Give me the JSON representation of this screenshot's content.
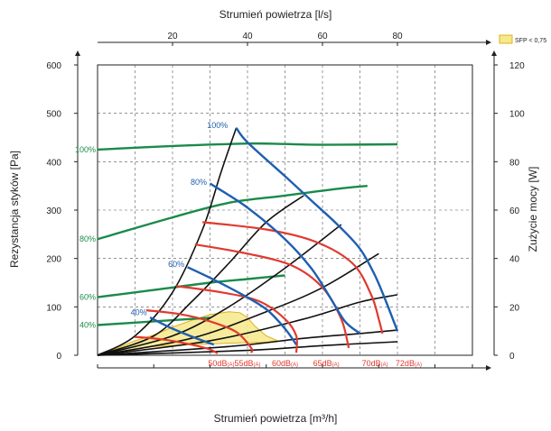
{
  "chart_data": {
    "type": "line",
    "title_top": "Strumień powietrza [l/s]",
    "xlabel": "Strumień powietrza [m³/h]",
    "ylabel_left": "Rezystancja styków [Pa]",
    "ylabel_right": "Zużycie mocy [W]",
    "top_axis": {
      "range": [
        0,
        100
      ],
      "ticks": [
        "20",
        "40",
        "60",
        "80"
      ],
      "tick_values": [
        20,
        40,
        60,
        80
      ]
    },
    "left_axis": {
      "range": [
        0,
        600
      ],
      "ticks": [
        "0",
        "100",
        "200",
        "300",
        "400",
        "500",
        "600"
      ],
      "tick_values": [
        0,
        100,
        200,
        300,
        400,
        500,
        600
      ]
    },
    "right_axis": {
      "range": [
        0,
        120
      ],
      "ticks": [
        "0",
        "20",
        "40",
        "60",
        "80",
        "100",
        "120"
      ],
      "tick_values": [
        0,
        20,
        40,
        60,
        80,
        100,
        120
      ]
    },
    "grid": true,
    "legend": {
      "placement": "top-right",
      "label": "SFP < 0,75",
      "color": "#f5e98a",
      "border": "#e0b020"
    },
    "sfp_region": [
      [
        0,
        0
      ],
      [
        5,
        14
      ],
      [
        10,
        30
      ],
      [
        15,
        42
      ],
      [
        20,
        58
      ],
      [
        25,
        72
      ],
      [
        30,
        84
      ],
      [
        35,
        90
      ],
      [
        38,
        88
      ],
      [
        40,
        78
      ],
      [
        42,
        60
      ],
      [
        45,
        40
      ],
      [
        48,
        30
      ],
      [
        45,
        27
      ],
      [
        35,
        25
      ],
      [
        25,
        22
      ],
      [
        15,
        18
      ],
      [
        8,
        10
      ],
      [
        0,
        0
      ]
    ],
    "speed_curves": {
      "color": "#1f5fb0",
      "series": [
        {
          "name": "100%",
          "label_at": [
            32,
            470
          ],
          "points": [
            [
              37,
              470
            ],
            [
              40,
              440
            ],
            [
              50,
              370
            ],
            [
              57,
              320
            ],
            [
              64,
              270
            ],
            [
              70,
              220
            ],
            [
              74,
              165
            ],
            [
              77,
              110
            ],
            [
              80,
              50
            ]
          ]
        },
        {
          "name": "80%",
          "label_at": [
            27,
            352
          ],
          "points": [
            [
              30,
              355
            ],
            [
              40,
              305
            ],
            [
              50,
              240
            ],
            [
              57,
              180
            ],
            [
              62,
              120
            ],
            [
              66,
              70
            ],
            [
              70,
              45
            ]
          ]
        },
        {
          "name": "60%",
          "label_at": [
            21,
            183
          ],
          "points": [
            [
              24,
              182
            ],
            [
              30,
              160
            ],
            [
              38,
              128
            ],
            [
              45,
              95
            ],
            [
              50,
              55
            ],
            [
              53,
              22
            ]
          ]
        },
        {
          "name": "40%",
          "label_at": [
            11,
            83
          ],
          "points": [
            [
              14,
              78
            ],
            [
              20,
              55
            ],
            [
              27,
              33
            ],
            [
              31,
              22
            ]
          ]
        }
      ]
    },
    "noise_curves": {
      "color": "#e03a2f",
      "series": [
        {
          "name": "50dB(A)",
          "label_x": 33,
          "points": [
            [
              10,
              38
            ],
            [
              18,
              32
            ],
            [
              25,
              22
            ],
            [
              30,
              12
            ],
            [
              32,
              4
            ]
          ]
        },
        {
          "name": "55dB(A)",
          "label_x": 40,
          "points": [
            [
              13,
              93
            ],
            [
              22,
              85
            ],
            [
              30,
              70
            ],
            [
              37,
              48
            ],
            [
              41,
              15
            ],
            [
              41,
              5
            ]
          ]
        },
        {
          "name": "60dB(A)",
          "label_x": 50,
          "points": [
            [
              21,
              143
            ],
            [
              33,
              130
            ],
            [
              43,
              112
            ],
            [
              50,
              75
            ],
            [
              53,
              40
            ],
            [
              53,
              5
            ]
          ]
        },
        {
          "name": "65dB(A)",
          "label_x": 61,
          "points": [
            [
              26,
              229
            ],
            [
              40,
              210
            ],
            [
              52,
              185
            ],
            [
              60,
              140
            ],
            [
              65,
              75
            ],
            [
              67,
              15
            ]
          ]
        },
        {
          "name": "70dB(A)",
          "label_x": 74,
          "points": [
            [
              28,
              275
            ],
            [
              45,
              260
            ],
            [
              58,
              235
            ],
            [
              68,
              190
            ],
            [
              73,
              125
            ],
            [
              75,
              75
            ],
            [
              76,
              45
            ]
          ]
        }
      ],
      "end_label": "72dB(A)",
      "end_label_x": 83
    },
    "system_curves": {
      "color": "#111111",
      "series": [
        {
          "points": [
            [
              0,
              0
            ],
            [
              10,
              40
            ],
            [
              20,
              130
            ],
            [
              28,
              260
            ],
            [
              33,
              380
            ],
            [
              37,
              470
            ]
          ]
        },
        {
          "points": [
            [
              0,
              0
            ],
            [
              15,
              40
            ],
            [
              25,
              110
            ],
            [
              35,
              190
            ],
            [
              45,
              275
            ],
            [
              55,
              330
            ]
          ]
        },
        {
          "points": [
            [
              0,
              0
            ],
            [
              20,
              40
            ],
            [
              35,
              100
            ],
            [
              50,
              180
            ],
            [
              65,
              270
            ]
          ]
        },
        {
          "points": [
            [
              0,
              0
            ],
            [
              25,
              35
            ],
            [
              45,
              90
            ],
            [
              60,
              140
            ],
            [
              75,
              210
            ]
          ]
        },
        {
          "points": [
            [
              0,
              0
            ],
            [
              30,
              30
            ],
            [
              55,
              75
            ],
            [
              70,
              110
            ],
            [
              80,
              125
            ]
          ]
        },
        {
          "points": [
            [
              0,
              0
            ],
            [
              35,
              18
            ],
            [
              55,
              35
            ],
            [
              70,
              45
            ],
            [
              80,
              52
            ]
          ]
        },
        {
          "points": [
            [
              0,
              0
            ],
            [
              40,
              10
            ],
            [
              60,
              20
            ],
            [
              80,
              28
            ]
          ]
        }
      ]
    },
    "power_curves": {
      "color": "#1a8a4a",
      "series": [
        {
          "name": "100%",
          "points": [
            [
              0,
              85
            ],
            [
              20,
              86.5
            ],
            [
              40,
              87.5
            ],
            [
              50,
              87.3
            ],
            [
              60,
              87
            ],
            [
              80,
              87.2
            ]
          ]
        },
        {
          "name": "80%",
          "points": [
            [
              0,
              48
            ],
            [
              20,
              57
            ],
            [
              35,
              63
            ],
            [
              50,
              66
            ],
            [
              65,
              69
            ],
            [
              72,
              70
            ]
          ]
        },
        {
          "name": "60%",
          "points": [
            [
              0,
              24
            ],
            [
              15,
              27
            ],
            [
              30,
              30
            ],
            [
              40,
              31.5
            ],
            [
              50,
              33
            ]
          ]
        },
        {
          "name": "40%",
          "points": [
            [
              0,
              12.5
            ],
            [
              10,
              13.5
            ],
            [
              20,
              14.5
            ],
            [
              30,
              15.5
            ]
          ]
        }
      ]
    }
  }
}
